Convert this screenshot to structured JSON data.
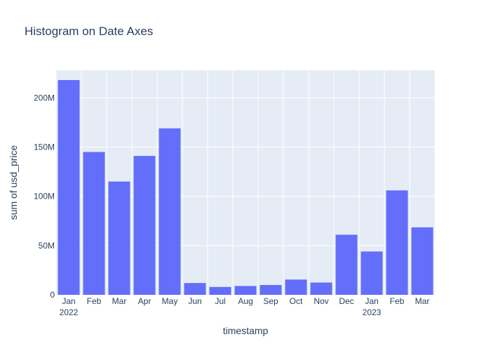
{
  "chart_data": {
    "type": "bar",
    "title": "Histogram on Date Axes",
    "xlabel": "timestamp",
    "ylabel": "sum of usd_price",
    "categories": [
      "Jan 2022",
      "Feb 2022",
      "Mar 2022",
      "Apr 2022",
      "May 2022",
      "Jun 2022",
      "Jul 2022",
      "Aug 2022",
      "Sep 2022",
      "Oct 2022",
      "Nov 2022",
      "Dec 2022",
      "Jan 2023",
      "Feb 2023",
      "Mar 2023"
    ],
    "x_tick_labels": [
      {
        "month": "Jan",
        "year": "2022"
      },
      {
        "month": "Feb",
        "year": ""
      },
      {
        "month": "Mar",
        "year": ""
      },
      {
        "month": "Apr",
        "year": ""
      },
      {
        "month": "May",
        "year": ""
      },
      {
        "month": "Jun",
        "year": ""
      },
      {
        "month": "Jul",
        "year": ""
      },
      {
        "month": "Aug",
        "year": ""
      },
      {
        "month": "Sep",
        "year": ""
      },
      {
        "month": "Oct",
        "year": ""
      },
      {
        "month": "Nov",
        "year": ""
      },
      {
        "month": "Dec",
        "year": ""
      },
      {
        "month": "Jan",
        "year": "2023"
      },
      {
        "month": "Feb",
        "year": ""
      },
      {
        "month": "Mar",
        "year": ""
      }
    ],
    "values": [
      218000000,
      145000000,
      115000000,
      141000000,
      169000000,
      12000000,
      8000000,
      9000000,
      10000000,
      15500000,
      12500000,
      61000000,
      44000000,
      106000000,
      68500000
    ],
    "ylim": [
      0,
      228000000
    ],
    "y_ticks": [
      {
        "value": 0,
        "label": "0"
      },
      {
        "value": 50000000,
        "label": "50M"
      },
      {
        "value": 100000000,
        "label": "100M"
      },
      {
        "value": 150000000,
        "label": "150M"
      },
      {
        "value": 200000000,
        "label": "200M"
      }
    ],
    "grid": true,
    "colors": {
      "bar": "#636efa",
      "plot_bg": "#e5ecf6",
      "grid": "#ffffff",
      "text": "#2a3f5f"
    }
  }
}
